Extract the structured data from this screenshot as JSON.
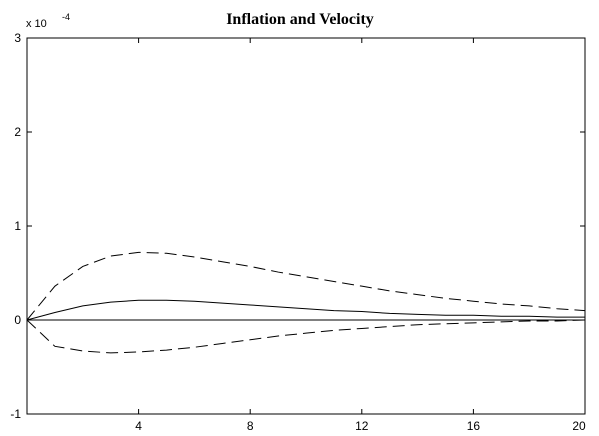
{
  "chart_data": {
    "type": "line",
    "title": "Inflation and Velocity",
    "xlabel": "",
    "ylabel": "",
    "y_multiplier": {
      "base": "x 10",
      "exponent": "-4"
    },
    "xlim": [
      0,
      20
    ],
    "ylim": [
      -1,
      3
    ],
    "xticks": [
      4,
      8,
      12,
      16,
      20
    ],
    "yticks": [
      -1,
      0,
      1,
      2,
      3
    ],
    "xtick_labels": [
      "4",
      "8",
      "12",
      "16",
      "20"
    ],
    "ytick_labels": [
      "-1",
      "0",
      "1",
      "2",
      "3"
    ],
    "grid": false,
    "zero_line": true,
    "x": [
      0,
      1,
      2,
      3,
      4,
      5,
      6,
      7,
      8,
      9,
      10,
      11,
      12,
      13,
      14,
      15,
      16,
      17,
      18,
      19,
      20
    ],
    "series": [
      {
        "style": "solid",
        "values": [
          0,
          0.08,
          0.15,
          0.19,
          0.21,
          0.21,
          0.2,
          0.18,
          0.16,
          0.14,
          0.12,
          0.1,
          0.09,
          0.07,
          0.06,
          0.05,
          0.05,
          0.04,
          0.04,
          0.03,
          0.03
        ]
      },
      {
        "style": "dashed",
        "values": [
          0,
          0.36,
          0.57,
          0.68,
          0.72,
          0.71,
          0.67,
          0.62,
          0.57,
          0.51,
          0.46,
          0.41,
          0.36,
          0.31,
          0.27,
          0.23,
          0.2,
          0.17,
          0.15,
          0.12,
          0.1
        ]
      },
      {
        "style": "dashed",
        "values": [
          0,
          -0.28,
          -0.33,
          -0.35,
          -0.34,
          -0.32,
          -0.29,
          -0.25,
          -0.21,
          -0.17,
          -0.14,
          -0.11,
          -0.09,
          -0.07,
          -0.05,
          -0.04,
          -0.03,
          -0.02,
          -0.01,
          -0.01,
          0
        ]
      }
    ]
  }
}
